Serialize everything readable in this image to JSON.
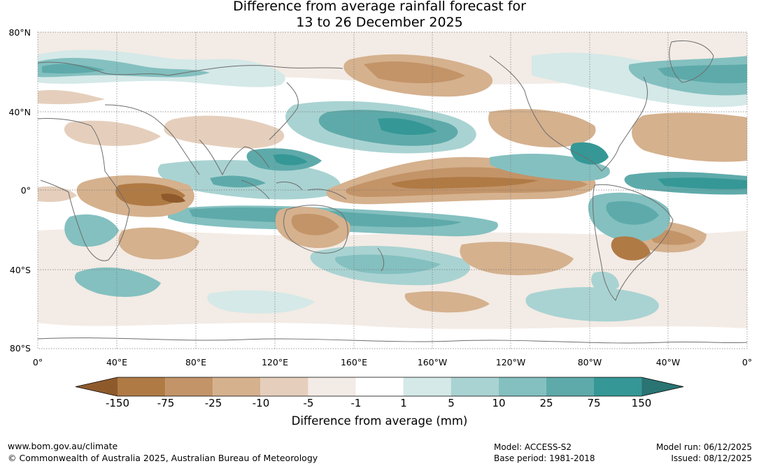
{
  "title_line1": "Difference from average rainfall forecast for",
  "title_line2": "13 to 26 December 2025",
  "lat_labels": [
    "80°N",
    "40°N",
    "0°",
    "40°S",
    "80°S"
  ],
  "lon_labels": [
    "0°",
    "40°E",
    "80°E",
    "120°E",
    "160°E",
    "160°W",
    "120°W",
    "80°W",
    "40°W",
    "0°"
  ],
  "colorbar": {
    "title": "Difference from average (mm)",
    "tick_labels": [
      "-150",
      "-75",
      "-25",
      "-10",
      "-5",
      "-1",
      "1",
      "5",
      "10",
      "25",
      "75",
      "150"
    ],
    "colors": [
      "#8f5a2b",
      "#b07a45",
      "#c39468",
      "#d5b18e",
      "#e5cfbc",
      "#f3ebe5",
      "#ffffff",
      "#d4e9e8",
      "#a9d3d2",
      "#84c0c0",
      "#5eaaaa",
      "#359896",
      "#2a7473"
    ]
  },
  "footer": {
    "website": "www.bom.gov.au/climate",
    "copyright": "© Commonwealth of Australia 2025, Australian Bureau of Meteorology",
    "model": "Model: ACCESS-S2",
    "base_period": "Base period: 1981-2018",
    "model_run": "Model run: 06/12/2025",
    "issued": "Issued: 08/12/2025"
  }
}
